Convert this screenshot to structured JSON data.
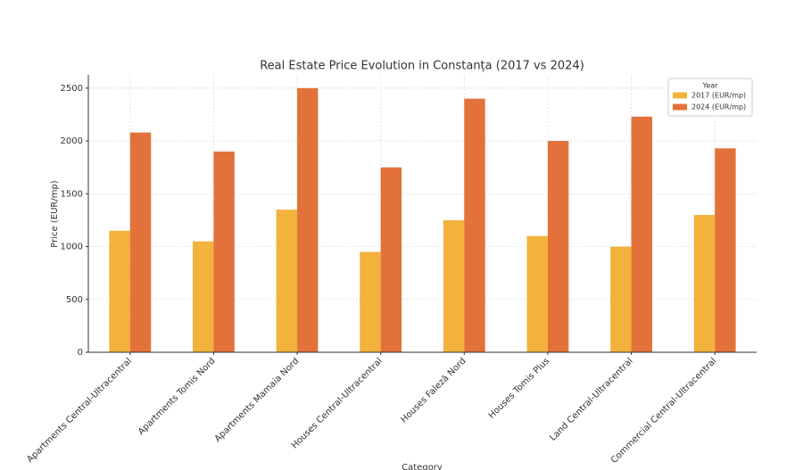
{
  "chart_data": {
    "type": "bar",
    "title": "Real Estate Price Evolution in Constanța (2017 vs 2024)",
    "x_label": "Category",
    "y_label": "Price (EUR/mp)",
    "categories": [
      "Apartments Central-Ultracentral",
      "Apartments Tomis Nord",
      "Apartments Mamaia Nord",
      "Houses Central-Ultracentral",
      "Houses Faleză Nord",
      "Houses Tomis Plus",
      "Land Central-Ultracentral",
      "Commercial Central-Ultracentral"
    ],
    "series": [
      {
        "name": "2017 (EUR/mp)",
        "color": "#f2b23c",
        "values": [
          1150,
          1050,
          1350,
          950,
          1250,
          1100,
          1000,
          1300
        ]
      },
      {
        "name": "2024 (EUR/mp)",
        "color": "#e3723a",
        "values": [
          2080,
          1900,
          2500,
          1750,
          2400,
          2000,
          2230,
          1930
        ]
      }
    ],
    "legend_title": "Year",
    "legend": "upper right",
    "ylim": [
      0,
      2625
    ],
    "yticks": [
      0,
      500,
      1000,
      1500,
      2000,
      2500
    ],
    "grid": true
  }
}
